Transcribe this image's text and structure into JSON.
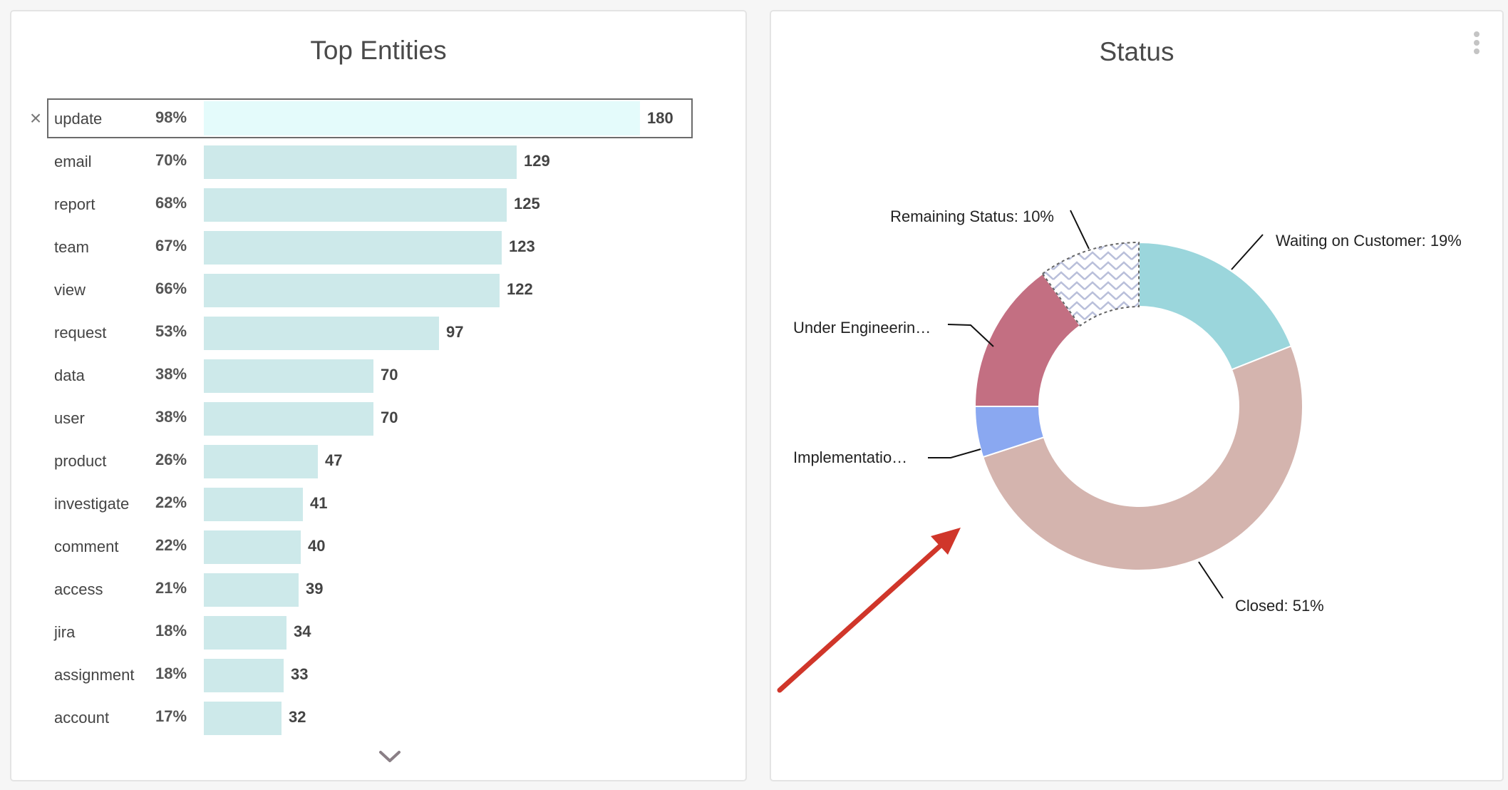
{
  "left_panel": {
    "title": "Top Entities",
    "remove_glyph": "×",
    "chevron_icon": "chevron-down-icon"
  },
  "right_panel": {
    "title": "Status",
    "menu_icon": "kebab-menu-icon"
  },
  "chart_data": [
    {
      "type": "bar",
      "orientation": "horizontal",
      "title": "Top Entities",
      "selected": "update",
      "rows": [
        {
          "label": "update",
          "pct": "98%",
          "value": 180
        },
        {
          "label": "email",
          "pct": "70%",
          "value": 129
        },
        {
          "label": "report",
          "pct": "68%",
          "value": 125
        },
        {
          "label": "team",
          "pct": "67%",
          "value": 123
        },
        {
          "label": "view",
          "pct": "66%",
          "value": 122
        },
        {
          "label": "request",
          "pct": "53%",
          "value": 97
        },
        {
          "label": "data",
          "pct": "38%",
          "value": 70
        },
        {
          "label": "user",
          "pct": "38%",
          "value": 70
        },
        {
          "label": "product",
          "pct": "26%",
          "value": 47
        },
        {
          "label": "investigate",
          "pct": "22%",
          "value": 41
        },
        {
          "label": "comment",
          "pct": "22%",
          "value": 40
        },
        {
          "label": "access",
          "pct": "21%",
          "value": 39
        },
        {
          "label": "jira",
          "pct": "18%",
          "value": 34
        },
        {
          "label": "assignment",
          "pct": "18%",
          "value": 33
        },
        {
          "label": "account",
          "pct": "17%",
          "value": 32
        }
      ],
      "bar_color": "#cde9ea",
      "selected_bar_color": "#e4fbfb"
    },
    {
      "type": "pie",
      "variant": "donut",
      "title": "Status",
      "slices": [
        {
          "label": "Waiting on Customer: 19%",
          "value": 19,
          "color": "#9bd6dc"
        },
        {
          "label": "Closed: 51%",
          "value": 51,
          "color": "#d4b4ae"
        },
        {
          "label": "Implementatio…",
          "value": 5,
          "color": "#8aa8f1"
        },
        {
          "label": "Under Engineerin…",
          "value": 15,
          "color": "#c36f82"
        },
        {
          "label": "Remaining Status: 10%",
          "value": 10,
          "color": "#ffffff",
          "pattern": "zigzag"
        }
      ],
      "annotation": "red arrow pointing at donut"
    }
  ],
  "annotation_color": "#d0362a"
}
